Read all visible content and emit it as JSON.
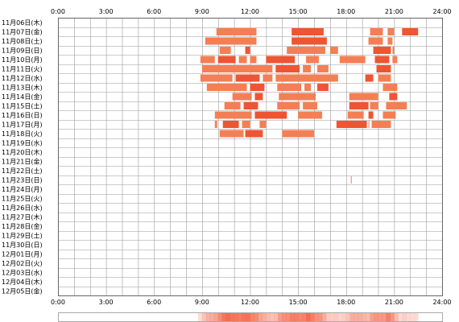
{
  "chart_data": {
    "type": "heatmap",
    "title": "",
    "xlabel": "",
    "ylabel": "",
    "xlim": [
      0,
      24
    ],
    "x_ticks": [
      "0:00",
      "3:00",
      "6:00",
      "9:00",
      "12:00",
      "15:00",
      "18:00",
      "21:00",
      "24:00"
    ],
    "grid": true,
    "colors": {
      "activity": "#f47f55",
      "activity_dark": "#ee5533",
      "grid": "#999999",
      "frame": "#666666"
    },
    "rows": [
      {
        "label": "11月06日(木)",
        "intervals": []
      },
      {
        "label": "11月07日(金)",
        "intervals": [
          [
            9.9,
            12.4
          ],
          [
            14.6,
            16.6
          ],
          [
            19.5,
            20.3
          ],
          [
            20.6,
            21.0
          ],
          [
            21.5,
            22.5
          ]
        ]
      },
      {
        "label": "11月08日(土)",
        "intervals": [
          [
            9.2,
            12.4
          ],
          [
            14.6,
            16.8
          ],
          [
            19.4,
            20.3
          ],
          [
            20.6,
            20.9
          ]
        ]
      },
      {
        "label": "11月09日(日)",
        "intervals": [
          [
            10.1,
            10.8
          ],
          [
            11.7,
            12.0
          ],
          [
            14.3,
            16.7
          ],
          [
            17.0,
            17.5
          ],
          [
            19.7,
            20.8
          ],
          [
            20.9,
            21.0
          ]
        ]
      },
      {
        "label": "11月10日(月)",
        "intervals": [
          [
            8.9,
            9.8
          ],
          [
            10.0,
            11.1
          ],
          [
            11.3,
            11.8
          ],
          [
            12.0,
            12.4
          ],
          [
            13.0,
            14.8
          ],
          [
            15.5,
            16.3
          ],
          [
            17.6,
            19.2
          ],
          [
            19.8,
            20.7
          ],
          [
            20.9,
            21.2
          ]
        ]
      },
      {
        "label": "11月11日(火)",
        "intervals": [
          [
            9.0,
            13.4
          ],
          [
            13.6,
            15.1
          ],
          [
            15.3,
            15.8
          ],
          [
            16.2,
            16.9
          ],
          [
            19.9,
            20.8
          ]
        ]
      },
      {
        "label": "11月12日(水)",
        "intervals": [
          [
            8.9,
            10.9
          ],
          [
            11.1,
            12.6
          ],
          [
            12.8,
            13.4
          ],
          [
            13.6,
            17.5
          ],
          [
            19.2,
            19.7
          ],
          [
            20.0,
            20.8
          ]
        ]
      },
      {
        "label": "11月13日(木)",
        "intervals": [
          [
            9.3,
            11.8
          ],
          [
            12.0,
            12.9
          ],
          [
            13.7,
            15.2
          ],
          [
            15.4,
            15.8
          ],
          [
            16.2,
            16.9
          ],
          [
            20.3,
            21.2
          ]
        ]
      },
      {
        "label": "11月14日(金)",
        "intervals": [
          [
            10.9,
            12.1
          ],
          [
            12.3,
            12.8
          ],
          [
            13.8,
            16.1
          ],
          [
            18.2,
            20.0
          ],
          [
            20.7,
            21.2
          ]
        ]
      },
      {
        "label": "11月15日(土)",
        "intervals": [
          [
            10.4,
            11.4
          ],
          [
            11.6,
            12.5
          ],
          [
            13.7,
            15.1
          ],
          [
            15.3,
            16.2
          ],
          [
            18.2,
            19.4
          ],
          [
            19.5,
            20.0
          ],
          [
            20.5,
            21.8
          ]
        ]
      },
      {
        "label": "11月16日(日)",
        "intervals": [
          [
            9.8,
            12.1
          ],
          [
            12.3,
            14.3
          ],
          [
            15.0,
            16.5
          ],
          [
            18.1,
            19.1
          ],
          [
            19.4,
            19.7
          ],
          [
            20.3,
            21.1
          ]
        ]
      },
      {
        "label": "11月17日(月)",
        "intervals": [
          [
            9.8,
            9.95
          ],
          [
            10.3,
            11.3
          ],
          [
            11.5,
            12.0
          ],
          [
            12.6,
            13.0
          ],
          [
            17.4,
            19.3
          ],
          [
            19.4,
            19.45
          ],
          [
            19.6,
            20.8
          ]
        ]
      },
      {
        "label": "11月18日(火)",
        "intervals": [
          [
            10.1,
            11.6
          ],
          [
            11.7,
            12.8
          ],
          [
            14.0,
            16.0
          ]
        ]
      },
      {
        "label": "11月19日(水)",
        "intervals": []
      },
      {
        "label": "11月20日(木)",
        "intervals": []
      },
      {
        "label": "11月21日(金)",
        "intervals": []
      },
      {
        "label": "11月22日(土)",
        "intervals": []
      },
      {
        "label": "11月23日(日)",
        "intervals": [
          [
            18.3,
            18.35
          ]
        ]
      },
      {
        "label": "11月24日(月)",
        "intervals": []
      },
      {
        "label": "11月25日(火)",
        "intervals": []
      },
      {
        "label": "11月26日(水)",
        "intervals": []
      },
      {
        "label": "11月27日(木)",
        "intervals": []
      },
      {
        "label": "11月28日(金)",
        "intervals": []
      },
      {
        "label": "11月29日(土)",
        "intervals": []
      },
      {
        "label": "11月30日(日)",
        "intervals": []
      },
      {
        "label": "12月01日(月)",
        "intervals": []
      },
      {
        "label": "12月02日(火)",
        "intervals": []
      },
      {
        "label": "12月03日(水)",
        "intervals": []
      },
      {
        "label": "12月04日(木)",
        "intervals": []
      },
      {
        "label": "12月05日(金)",
        "intervals": []
      }
    ]
  }
}
